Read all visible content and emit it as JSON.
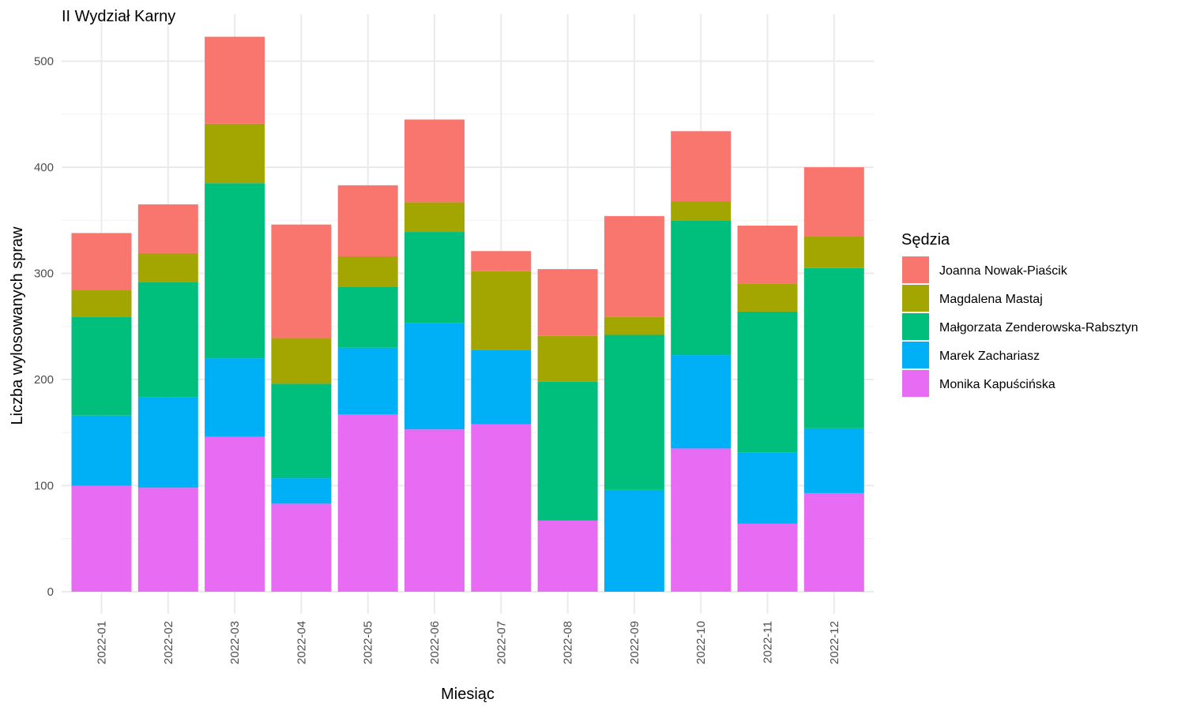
{
  "chart_data": {
    "type": "bar",
    "stacked": true,
    "title": "II Wydział Karny",
    "xlabel": "Miesiąc",
    "ylabel": "Liczba wylosowanych spraw",
    "ylim": [
      0,
      530
    ],
    "yticks": [
      0,
      100,
      200,
      300,
      400,
      500
    ],
    "grid": true,
    "legend_position": "right",
    "legend_title": "Sędzia",
    "categories": [
      "2022-01",
      "2022-02",
      "2022-03",
      "2022-04",
      "2022-05",
      "2022-06",
      "2022-07",
      "2022-08",
      "2022-09",
      "2022-10",
      "2022-11",
      "2022-12"
    ],
    "series": [
      {
        "name": "Monika Kapuścińska",
        "color": "#E76BF3",
        "values": [
          100,
          98,
          146,
          83,
          167,
          153,
          158,
          67,
          0,
          135,
          64,
          93
        ]
      },
      {
        "name": "Marek Zachariasz",
        "color": "#00B0F6",
        "values": [
          66,
          85,
          74,
          24,
          63,
          100,
          70,
          0,
          96,
          88,
          67,
          61
        ]
      },
      {
        "name": "Małgorzata Zenderowska-Rabsztyn",
        "color": "#00BF7D",
        "values": [
          93,
          109,
          165,
          89,
          57,
          86,
          0,
          131,
          146,
          127,
          133,
          151
        ]
      },
      {
        "name": "Magdalena Mastaj",
        "color": "#A3A500",
        "values": [
          25,
          27,
          56,
          43,
          29,
          28,
          74,
          43,
          17,
          18,
          26,
          30
        ]
      },
      {
        "name": "Joanna Nowak-Piaścik",
        "color": "#F8766D",
        "values": [
          54,
          46,
          82,
          107,
          67,
          78,
          19,
          63,
          95,
          66,
          55,
          65
        ]
      }
    ],
    "legend_order": [
      "Joanna Nowak-Piaścik",
      "Magdalena Mastaj",
      "Małgorzata Zenderowska-Rabsztyn",
      "Marek Zachariasz",
      "Monika Kapuścińska"
    ]
  }
}
